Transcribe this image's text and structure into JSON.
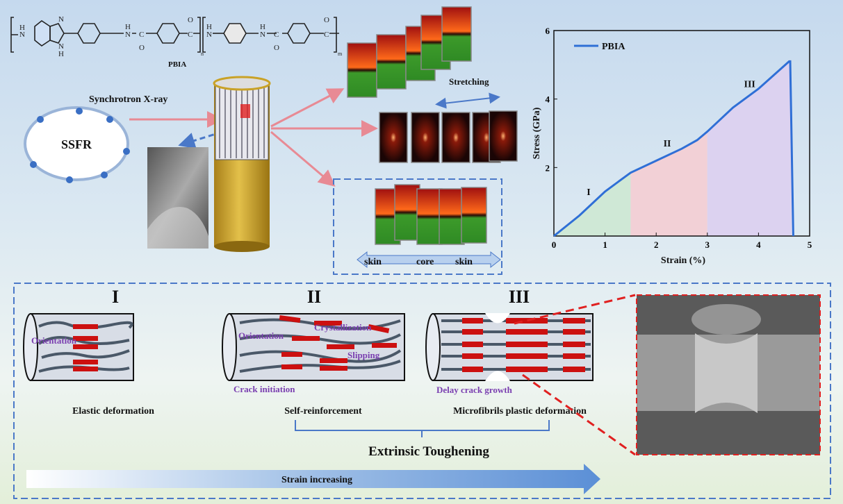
{
  "structure": {
    "label": "PBIA",
    "atoms": {
      "N": "N",
      "H": "H",
      "C": "C",
      "O": "O"
    },
    "subscripts": [
      "n",
      "m"
    ]
  },
  "setup": {
    "source_label": "SSFR",
    "beam_label": "Synchrotron X-ray",
    "stretching_label": "Stretching",
    "profile_labels": [
      "skin",
      "core",
      "skin"
    ]
  },
  "chart_data": {
    "type": "line",
    "xlabel": "Strain (%)",
    "ylabel": "Stress (GPa)",
    "xlim": [
      0,
      5
    ],
    "ylim": [
      0,
      6
    ],
    "xticks": [
      "0",
      "1",
      "2",
      "3",
      "4",
      "5"
    ],
    "yticks": [
      "2",
      "4",
      "6"
    ],
    "grid": false,
    "legend_position": "top-left",
    "series": [
      {
        "name": "PBIA",
        "color": "#2f6fd6",
        "x": [
          0,
          0.5,
          1.0,
          1.5,
          2.0,
          2.5,
          2.8,
          3.0,
          3.5,
          4.0,
          4.6,
          4.62,
          4.68
        ],
        "y": [
          0,
          0.6,
          1.3,
          1.85,
          2.2,
          2.55,
          2.8,
          3.05,
          3.75,
          4.3,
          5.1,
          5.1,
          0
        ]
      }
    ],
    "regions": [
      {
        "label": "I",
        "from": 0,
        "to": 1.5,
        "color": "#cfe8d6"
      },
      {
        "label": "II",
        "from": 1.5,
        "to": 3.0,
        "color": "#f2d0d6"
      },
      {
        "label": "III",
        "from": 3.0,
        "to": 4.65,
        "color": "#dcd2f0"
      }
    ]
  },
  "stages": [
    {
      "numeral": "I",
      "caption": "Elastic deformation",
      "annotations": [
        "Orientation"
      ]
    },
    {
      "numeral": "II",
      "caption": "Self-reinforcement",
      "annotations": [
        "Orientation",
        "Crystallization",
        "Slipping",
        "Crack initiation"
      ]
    },
    {
      "numeral": "III",
      "caption": "Microfibrils plastic deformation",
      "annotations": [
        "Delay crack growth"
      ]
    }
  ],
  "toughening_label": "Extrinsic Toughening",
  "strain_arrow_label": "Strain increasing",
  "colors": {
    "accent_blue": "#4a78c8",
    "pink_arrow": "#e88a94",
    "red_dash": "#e02020",
    "gold": "#c9a227"
  }
}
